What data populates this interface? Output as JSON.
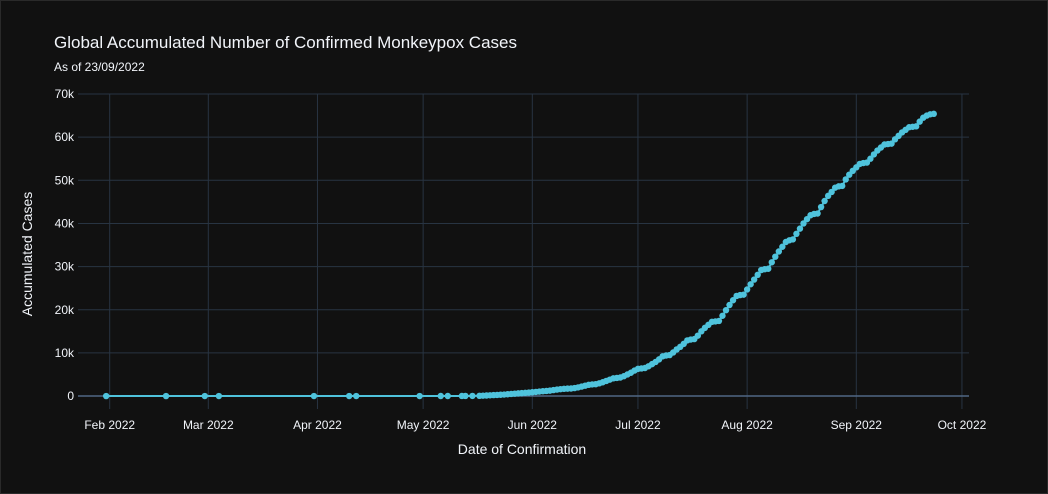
{
  "chart_data": {
    "type": "line",
    "mode": "lines+markers",
    "title": "Global Accumulated Number of Confirmed Monkeypox Cases",
    "subtitle": "As of 23/09/2022",
    "xlabel": "Date of Confirmation",
    "ylabel": "Accumulated Cases",
    "x_range": [
      "2022-01-23",
      "2022-10-03"
    ],
    "ylim": [
      -3000,
      70000
    ],
    "x_ticks": [
      {
        "date": "2022-02-01",
        "label": "Feb 2022"
      },
      {
        "date": "2022-03-01",
        "label": "Mar 2022"
      },
      {
        "date": "2022-04-01",
        "label": "Apr 2022"
      },
      {
        "date": "2022-05-01",
        "label": "May 2022"
      },
      {
        "date": "2022-06-01",
        "label": "Jun 2022"
      },
      {
        "date": "2022-07-01",
        "label": "Jul 2022"
      },
      {
        "date": "2022-08-01",
        "label": "Aug 2022"
      },
      {
        "date": "2022-09-01",
        "label": "Sep 2022"
      },
      {
        "date": "2022-10-01",
        "label": "Oct 2022"
      }
    ],
    "y_ticks": [
      {
        "value": 0,
        "label": "0"
      },
      {
        "value": 10000,
        "label": "10k"
      },
      {
        "value": 20000,
        "label": "20k"
      },
      {
        "value": 30000,
        "label": "30k"
      },
      {
        "value": 40000,
        "label": "40k"
      },
      {
        "value": 50000,
        "label": "50k"
      },
      {
        "value": 60000,
        "label": "60k"
      },
      {
        "value": 70000,
        "label": "70k"
      }
    ],
    "grid": true,
    "legend": false,
    "background_color": "#111111",
    "grid_color": "#283442",
    "zero_line_color": "#506784",
    "series_color": "#4fc3dc",
    "series": [
      {
        "points": [
          [
            "2022-01-31",
            1
          ],
          [
            "2022-02-17",
            2
          ],
          [
            "2022-02-28",
            3
          ],
          [
            "2022-03-04",
            4
          ],
          [
            "2022-03-31",
            5
          ],
          [
            "2022-04-10",
            6
          ],
          [
            "2022-04-12",
            7
          ],
          [
            "2022-04-30",
            8
          ],
          [
            "2022-05-06",
            10
          ],
          [
            "2022-05-08",
            12
          ],
          [
            "2022-05-12",
            18
          ],
          [
            "2022-05-13",
            25
          ],
          [
            "2022-05-15",
            35
          ],
          [
            "2022-05-17",
            60
          ],
          [
            "2022-05-18",
            90
          ],
          [
            "2022-05-19",
            130
          ],
          [
            "2022-05-20",
            180
          ],
          [
            "2022-05-21",
            220
          ],
          [
            "2022-05-22",
            260
          ],
          [
            "2022-05-23",
            300
          ],
          [
            "2022-05-24",
            350
          ],
          [
            "2022-05-25",
            420
          ],
          [
            "2022-05-26",
            480
          ],
          [
            "2022-05-27",
            550
          ],
          [
            "2022-05-28",
            620
          ],
          [
            "2022-05-29",
            680
          ],
          [
            "2022-05-30",
            740
          ],
          [
            "2022-05-31",
            800
          ],
          [
            "2022-06-01",
            880
          ],
          [
            "2022-06-02",
            960
          ],
          [
            "2022-06-03",
            1050
          ],
          [
            "2022-06-04",
            1120
          ],
          [
            "2022-06-05",
            1180
          ],
          [
            "2022-06-06",
            1260
          ],
          [
            "2022-06-07",
            1380
          ],
          [
            "2022-06-08",
            1500
          ],
          [
            "2022-06-09",
            1600
          ],
          [
            "2022-06-10",
            1680
          ],
          [
            "2022-06-11",
            1720
          ],
          [
            "2022-06-12",
            1750
          ],
          [
            "2022-06-13",
            1850
          ],
          [
            "2022-06-14",
            2000
          ],
          [
            "2022-06-15",
            2200
          ],
          [
            "2022-06-16",
            2400
          ],
          [
            "2022-06-17",
            2600
          ],
          [
            "2022-06-18",
            2700
          ],
          [
            "2022-06-19",
            2750
          ],
          [
            "2022-06-20",
            2950
          ],
          [
            "2022-06-21",
            3200
          ],
          [
            "2022-06-22",
            3500
          ],
          [
            "2022-06-23",
            3800
          ],
          [
            "2022-06-24",
            4100
          ],
          [
            "2022-06-25",
            4200
          ],
          [
            "2022-06-26",
            4300
          ],
          [
            "2022-06-27",
            4600
          ],
          [
            "2022-06-28",
            5000
          ],
          [
            "2022-06-29",
            5400
          ],
          [
            "2022-06-30",
            5900
          ],
          [
            "2022-07-01",
            6300
          ],
          [
            "2022-07-02",
            6400
          ],
          [
            "2022-07-03",
            6500
          ],
          [
            "2022-07-04",
            6900
          ],
          [
            "2022-07-05",
            7400
          ],
          [
            "2022-07-06",
            7900
          ],
          [
            "2022-07-07",
            8500
          ],
          [
            "2022-07-08",
            9200
          ],
          [
            "2022-07-09",
            9400
          ],
          [
            "2022-07-10",
            9500
          ],
          [
            "2022-07-11",
            10100
          ],
          [
            "2022-07-12",
            10800
          ],
          [
            "2022-07-13",
            11400
          ],
          [
            "2022-07-14",
            12100
          ],
          [
            "2022-07-15",
            12900
          ],
          [
            "2022-07-16",
            13100
          ],
          [
            "2022-07-17",
            13200
          ],
          [
            "2022-07-18",
            14000
          ],
          [
            "2022-07-19",
            15000
          ],
          [
            "2022-07-20",
            15800
          ],
          [
            "2022-07-21",
            16500
          ],
          [
            "2022-07-22",
            17200
          ],
          [
            "2022-07-23",
            17300
          ],
          [
            "2022-07-24",
            17400
          ],
          [
            "2022-07-25",
            18600
          ],
          [
            "2022-07-26",
            19900
          ],
          [
            "2022-07-27",
            21100
          ],
          [
            "2022-07-28",
            22200
          ],
          [
            "2022-07-29",
            23200
          ],
          [
            "2022-07-30",
            23400
          ],
          [
            "2022-07-31",
            23500
          ],
          [
            "2022-08-01",
            24700
          ],
          [
            "2022-08-02",
            25900
          ],
          [
            "2022-08-03",
            27000
          ],
          [
            "2022-08-04",
            28100
          ],
          [
            "2022-08-05",
            29200
          ],
          [
            "2022-08-06",
            29400
          ],
          [
            "2022-08-07",
            29500
          ],
          [
            "2022-08-08",
            31000
          ],
          [
            "2022-08-09",
            32300
          ],
          [
            "2022-08-10",
            33500
          ],
          [
            "2022-08-11",
            34600
          ],
          [
            "2022-08-12",
            35700
          ],
          [
            "2022-08-13",
            36100
          ],
          [
            "2022-08-14",
            36300
          ],
          [
            "2022-08-15",
            37600
          ],
          [
            "2022-08-16",
            38800
          ],
          [
            "2022-08-17",
            40000
          ],
          [
            "2022-08-18",
            41000
          ],
          [
            "2022-08-19",
            41900
          ],
          [
            "2022-08-20",
            42200
          ],
          [
            "2022-08-21",
            42300
          ],
          [
            "2022-08-22",
            43800
          ],
          [
            "2022-08-23",
            45200
          ],
          [
            "2022-08-24",
            46400
          ],
          [
            "2022-08-25",
            47300
          ],
          [
            "2022-08-26",
            48300
          ],
          [
            "2022-08-27",
            48600
          ],
          [
            "2022-08-28",
            48700
          ],
          [
            "2022-08-29",
            50200
          ],
          [
            "2022-08-30",
            51300
          ],
          [
            "2022-08-31",
            52200
          ],
          [
            "2022-09-01",
            53000
          ],
          [
            "2022-09-02",
            53800
          ],
          [
            "2022-09-03",
            54000
          ],
          [
            "2022-09-04",
            54100
          ],
          [
            "2022-09-05",
            55000
          ],
          [
            "2022-09-06",
            56000
          ],
          [
            "2022-09-07",
            56900
          ],
          [
            "2022-09-08",
            57600
          ],
          [
            "2022-09-09",
            58300
          ],
          [
            "2022-09-10",
            58400
          ],
          [
            "2022-09-11",
            58500
          ],
          [
            "2022-09-12",
            59500
          ],
          [
            "2022-09-13",
            60300
          ],
          [
            "2022-09-14",
            61100
          ],
          [
            "2022-09-15",
            61700
          ],
          [
            "2022-09-16",
            62300
          ],
          [
            "2022-09-17",
            62400
          ],
          [
            "2022-09-18",
            62500
          ],
          [
            "2022-09-19",
            63600
          ],
          [
            "2022-09-20",
            64500
          ],
          [
            "2022-09-21",
            65000
          ],
          [
            "2022-09-22",
            65300
          ],
          [
            "2022-09-23",
            65400
          ]
        ]
      }
    ]
  }
}
